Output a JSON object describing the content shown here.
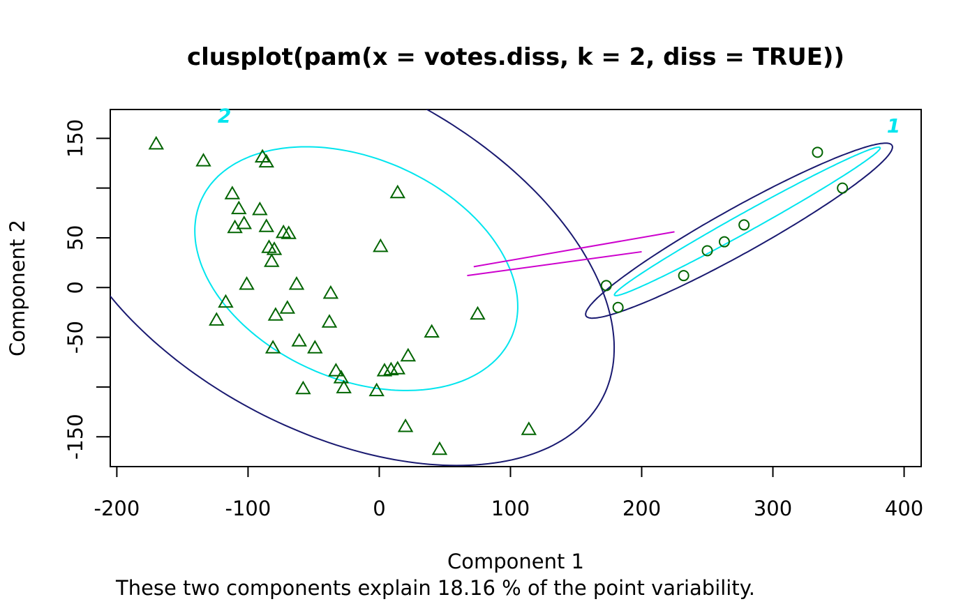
{
  "chart_data": {
    "type": "scatter",
    "title": "clusplot(pam(x = votes.diss, k = 2, diss = TRUE))",
    "xlabel": "Component 1",
    "ylabel": "Component 2",
    "subtitle": "These two components explain 18.16 % of the point variability.",
    "xlim": [
      -205,
      413
    ],
    "ylim": [
      -180,
      179
    ],
    "xticks": [
      -200,
      -100,
      0,
      100,
      200,
      300,
      400
    ],
    "xtick_labels": [
      "-200",
      "-100",
      "0",
      "100",
      "200",
      "300",
      "400"
    ],
    "yticks": [
      -150,
      -100,
      -50,
      0,
      50,
      100,
      150
    ],
    "ytick_labels": [
      "-150",
      "",
      "-50",
      "0",
      "50",
      "",
      "150"
    ],
    "colors": {
      "points": "#006400",
      "cluster_ellipse": "#00E5EE",
      "spanning_ellipse": "#191970",
      "distance_line": "#CD00CD",
      "frame": "#000000"
    },
    "clusters": [
      {
        "label": "1",
        "marker": "circle",
        "points": [
          [
            173,
            2
          ],
          [
            182,
            -20
          ],
          [
            232,
            12
          ],
          [
            250,
            37
          ],
          [
            263,
            46
          ],
          [
            278,
            63
          ],
          [
            334,
            136
          ],
          [
            353,
            100
          ]
        ]
      },
      {
        "label": "2",
        "marker": "triangle",
        "points": [
          [
            -170,
            144
          ],
          [
            -134,
            127
          ],
          [
            -89,
            131
          ],
          [
            -86,
            126
          ],
          [
            -112,
            94
          ],
          [
            -107,
            79
          ],
          [
            -91,
            78
          ],
          [
            -103,
            64
          ],
          [
            -110,
            60
          ],
          [
            -86,
            61
          ],
          [
            -73,
            55
          ],
          [
            -69,
            54
          ],
          [
            -84,
            40
          ],
          [
            -80,
            38
          ],
          [
            -82,
            26
          ],
          [
            -101,
            3
          ],
          [
            -63,
            3
          ],
          [
            -37,
            -6
          ],
          [
            -117,
            -15
          ],
          [
            -124,
            -33
          ],
          [
            -70,
            -21
          ],
          [
            -79,
            -28
          ],
          [
            -38,
            -35
          ],
          [
            -61,
            -54
          ],
          [
            -81,
            -61
          ],
          [
            -49,
            -61
          ],
          [
            40,
            -45
          ],
          [
            75,
            -27
          ],
          [
            1,
            41
          ],
          [
            14,
            95
          ],
          [
            22,
            -69
          ],
          [
            14,
            -82
          ],
          [
            9,
            -83
          ],
          [
            4,
            -84
          ],
          [
            -33,
            -84
          ],
          [
            -29,
            -91
          ],
          [
            -27,
            -101
          ],
          [
            -2,
            -104
          ],
          [
            -58,
            -102
          ],
          [
            20,
            -140
          ],
          [
            114,
            -143
          ],
          [
            46,
            -163
          ]
        ]
      }
    ],
    "ellipses": [
      {
        "cluster": "1",
        "kind": "cluster",
        "cx": 280.5,
        "cy": 66.5,
        "a": 125.5,
        "b": 8.7,
        "angle": 36.3
      },
      {
        "cluster": "2",
        "kind": "cluster",
        "cx": -17.5,
        "cy": 19,
        "a": 140.6,
        "b": 101.9,
        "angle": -44.6
      },
      {
        "cluster": "1",
        "kind": "spanning",
        "cx": 274.2,
        "cy": 57.2,
        "a": 144.8,
        "b": 21,
        "angle": 36.6
      },
      {
        "cluster": "2",
        "kind": "spanning",
        "cx": -34.6,
        "cy": 31.5,
        "a": 254.4,
        "b": 158.7,
        "angle": -44
      }
    ],
    "cluster_labels": [
      {
        "text": "1",
        "x": 392,
        "y": 163
      },
      {
        "text": "2",
        "x": -118,
        "y": 173
      }
    ],
    "distance_lines": [
      {
        "from": [
          72,
          21
        ],
        "to": [
          225,
          56
        ]
      },
      {
        "from": [
          67,
          12
        ],
        "to": [
          200,
          36
        ]
      }
    ]
  }
}
